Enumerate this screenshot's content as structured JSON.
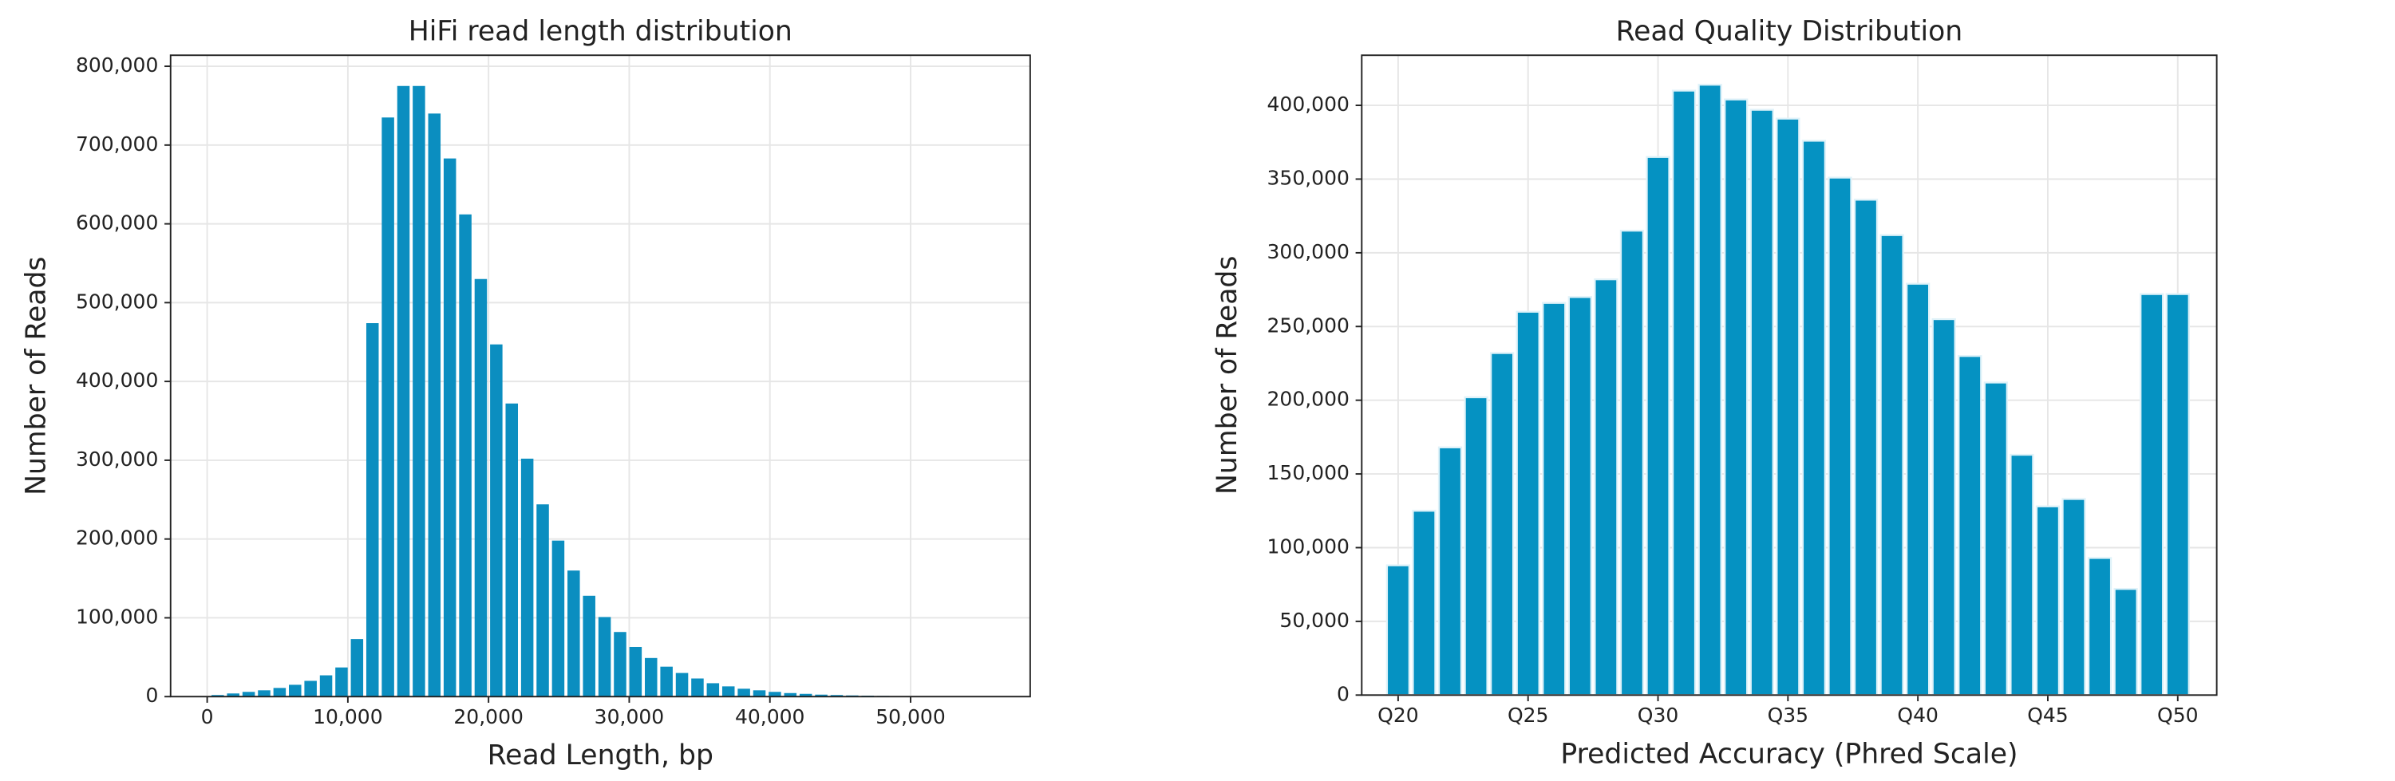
{
  "chart_data": [
    {
      "type": "histogram",
      "title": "HiFi read length distribution",
      "x_label": "Read Length, bp",
      "y_label": "Number of Reads",
      "color": "#0b8ec0",
      "grid": true,
      "bins": [
        200,
        1300,
        2400,
        3500,
        4600,
        5700,
        6800,
        7900,
        9000,
        10100,
        11200,
        12300,
        13400,
        14500,
        15600,
        16700,
        17800,
        18900,
        20000,
        21100,
        22200,
        23300,
        24400,
        25500,
        26600,
        27700,
        28800,
        29900,
        31000,
        32100,
        33200,
        34300,
        35400,
        36500,
        37600,
        38700,
        39800,
        40900,
        42000,
        43100,
        44200,
        45300,
        46400,
        47500,
        48600,
        49700
      ],
      "values": [
        2000,
        4000,
        6000,
        8000,
        11000,
        15000,
        20000,
        27000,
        37000,
        73000,
        474000,
        735000,
        775000,
        775000,
        740000,
        683000,
        612000,
        530000,
        447000,
        372000,
        302000,
        244000,
        198000,
        160000,
        128000,
        101000,
        82000,
        63000,
        49000,
        38000,
        30000,
        23000,
        17000,
        13000,
        10000,
        8000,
        6000,
        4500,
        3500,
        2500,
        2000,
        1500,
        1200,
        900,
        700
      ],
      "xlim": [
        -2600,
        58500
      ],
      "xticks": [
        0,
        {
          "value": 10000,
          "label": "10,000"
        },
        {
          "value": 20000,
          "label": "20,000"
        },
        {
          "value": 30000,
          "label": "30,000"
        },
        {
          "value": 40000,
          "label": "40,000"
        },
        {
          "value": 50000,
          "label": "50,000"
        }
      ],
      "ylim": [
        0,
        814000
      ],
      "yticks": [
        0,
        {
          "value": 100000,
          "label": "100,000"
        },
        {
          "value": 200000,
          "label": "200,000"
        },
        {
          "value": 300000,
          "label": "300,000"
        },
        {
          "value": 400000,
          "label": "400,000"
        },
        {
          "value": 500000,
          "label": "500,000"
        },
        {
          "value": 600000,
          "label": "600,000"
        },
        {
          "value": 700000,
          "label": "700,000"
        },
        {
          "value": 800000,
          "label": "800,000"
        }
      ]
    },
    {
      "type": "bar",
      "title": "Read Quality Distribution",
      "x_label": "Predicted Accuracy (Phred Scale)",
      "y_label": "Number of Reads",
      "color": "#0592c2",
      "grid": true,
      "x": [
        20,
        21,
        22,
        23,
        24,
        25,
        26,
        27,
        28,
        29,
        30,
        31,
        32,
        33,
        34,
        35,
        36,
        37,
        38,
        39,
        40,
        41,
        42,
        43,
        44,
        45,
        46,
        47,
        48,
        49,
        50
      ],
      "values": [
        88000,
        125000,
        168000,
        202000,
        232000,
        260000,
        266000,
        270000,
        282000,
        315000,
        365000,
        410000,
        414000,
        404000,
        397000,
        391000,
        376000,
        351000,
        336000,
        312000,
        279000,
        255000,
        230000,
        212000,
        163000,
        128000,
        133000,
        93000,
        72000,
        272000,
        272000
      ],
      "xlim": [
        18.6,
        51.5
      ],
      "xticks": [
        {
          "value": 20,
          "label": "Q20"
        },
        {
          "value": 25,
          "label": "Q25"
        },
        {
          "value": 30,
          "label": "Q30"
        },
        {
          "value": 35,
          "label": "Q35"
        },
        {
          "value": 40,
          "label": "Q40"
        },
        {
          "value": 45,
          "label": "Q45"
        },
        {
          "value": 50,
          "label": "Q50"
        }
      ],
      "ylim": [
        0,
        434000
      ],
      "yticks": [
        0,
        {
          "value": 50000,
          "label": "50,000"
        },
        {
          "value": 100000,
          "label": "100,000"
        },
        {
          "value": 150000,
          "label": "150,000"
        },
        {
          "value": 200000,
          "label": "200,000"
        },
        {
          "value": 250000,
          "label": "250,000"
        },
        {
          "value": 300000,
          "label": "300,000"
        },
        {
          "value": 350000,
          "label": "350,000"
        },
        {
          "value": 400000,
          "label": "400,000"
        }
      ]
    }
  ]
}
